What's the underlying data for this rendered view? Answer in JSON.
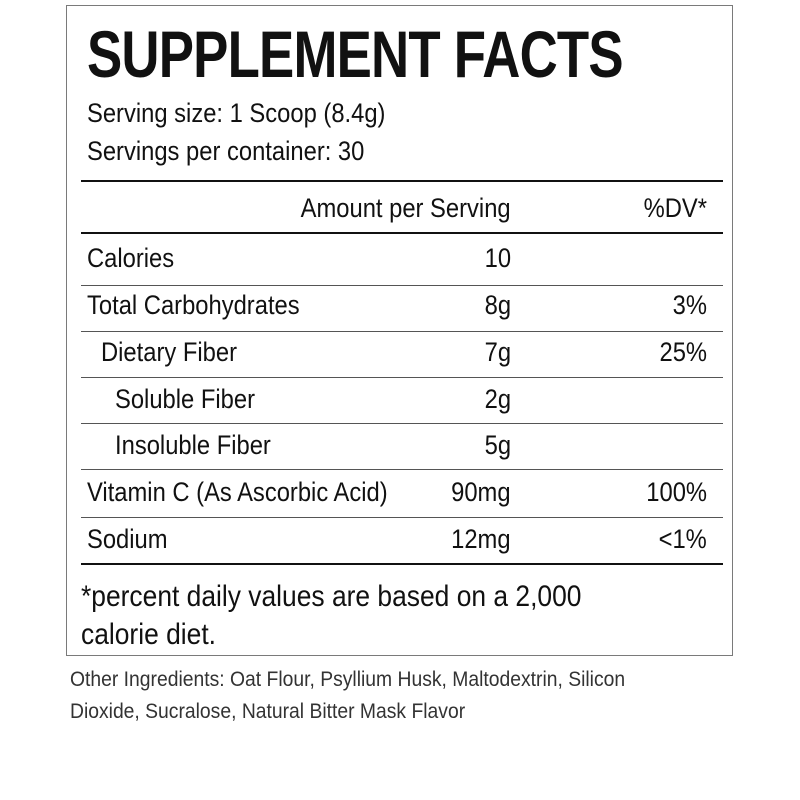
{
  "title": "SUPPLEMENT FACTS",
  "serving_size": "Serving size: 1 Scoop (8.4g)",
  "servings_per_container": "Servings per container: 30",
  "header": {
    "amount": "Amount per Serving",
    "dv": "%DV*"
  },
  "rows": [
    {
      "name": "Calories",
      "amount": "10",
      "dv": ""
    },
    {
      "name": "Total Carbohydrates",
      "amount": "8g",
      "dv": "3%"
    },
    {
      "name": "Dietary Fiber",
      "amount": "7g",
      "dv": "25%"
    },
    {
      "name": "Soluble Fiber",
      "amount": "2g",
      "dv": ""
    },
    {
      "name": "Insoluble Fiber",
      "amount": "5g",
      "dv": ""
    },
    {
      "name": "Vitamin C (As Ascorbic Acid)",
      "amount": "90mg",
      "dv": "100%"
    },
    {
      "name": "Sodium",
      "amount": "12mg",
      "dv": "<1%"
    }
  ],
  "footnote": {
    "line1": "*percent daily values are based on a 2,000",
    "line2": "calorie diet."
  },
  "ingredients": {
    "line1": "Other Ingredients: Oat Flour, Psyllium Husk, Maltodextrin, Silicon",
    "line2": "Dioxide, Sucralose, Natural Bitter Mask Flavor"
  }
}
